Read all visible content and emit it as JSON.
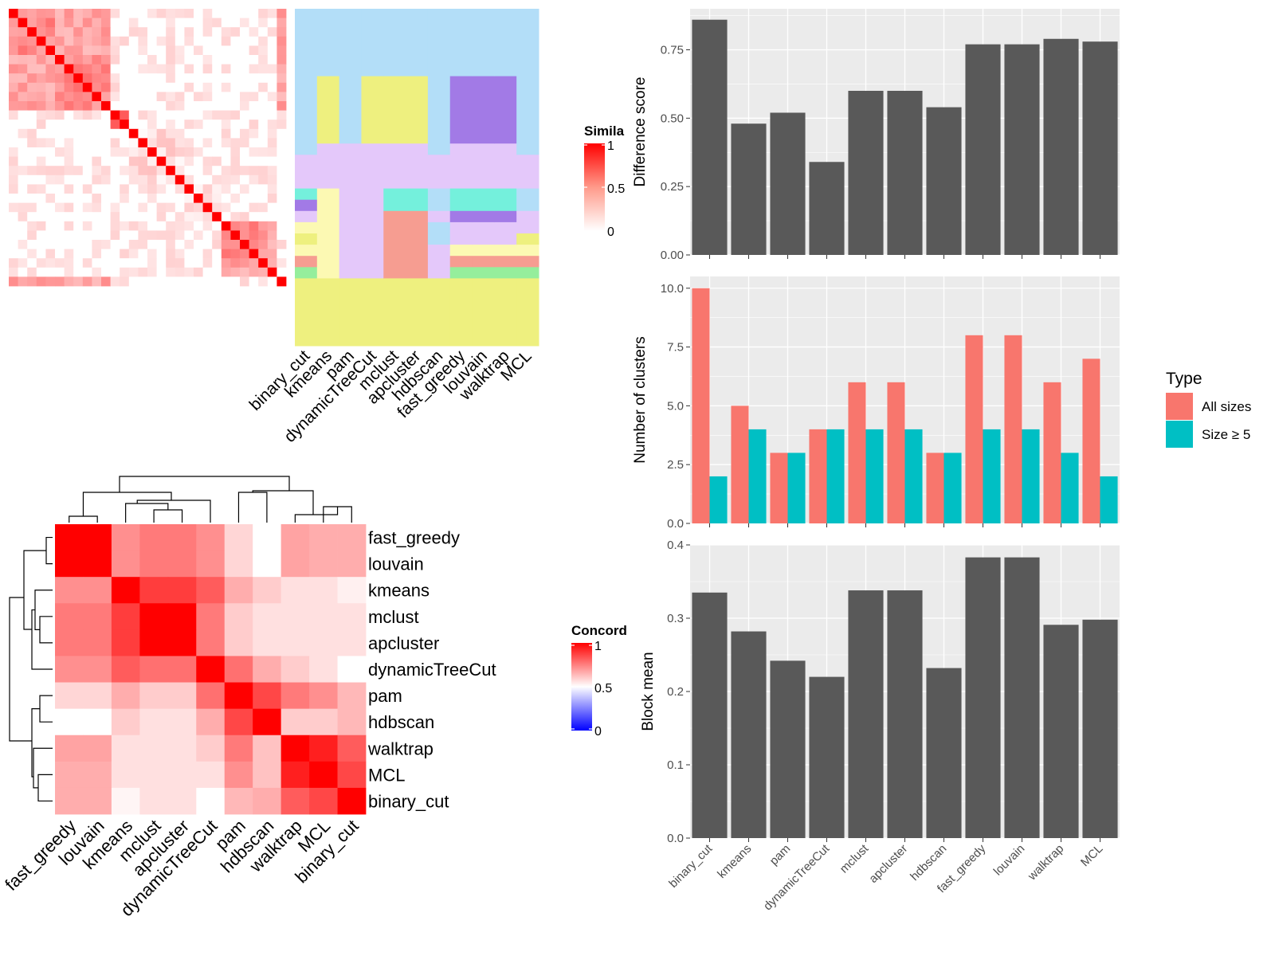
{
  "methods_x": [
    "binary_cut",
    "kmeans",
    "pam",
    "dynamicTreeCut",
    "mclust",
    "apcluster",
    "hdbscan",
    "fast_greedy",
    "louvain",
    "walktrap",
    "MCL"
  ],
  "similarity_legend": {
    "title": "Simila",
    "ticks": [
      "1",
      "0.5",
      "0"
    ]
  },
  "concordance_legend": {
    "title": "Concord",
    "ticks": [
      "1",
      "0.5",
      "0"
    ]
  },
  "colors": {
    "panel_bg": "#ebebeb",
    "grid": "#ffffff",
    "bar_dark": "#595959",
    "all_sizes": "#f8766d",
    "size_ge5": "#00bfc4",
    "sim_high": "#ff0000",
    "cluster_lightblue": "#b3def8",
    "cluster_lightyellow": "#eef07f",
    "cluster_lavender": "#e4c8fa",
    "cluster_purple": "#a27ae6",
    "cluster_cyan": "#74f0dc",
    "cluster_salmon": "#f69d91",
    "cluster_cream": "#fcf9b3",
    "cluster_green": "#95ee9c"
  },
  "chart_data": [
    {
      "type": "heatmap",
      "name": "similarity_matrix",
      "n": 30,
      "blocks": [
        [
          0,
          5,
          0.35
        ],
        [
          5,
          11,
          0.35
        ],
        [
          11,
          13,
          0.45
        ],
        [
          13,
          19,
          0.0
        ],
        [
          19,
          23,
          0.0
        ],
        [
          23,
          28,
          0.3
        ],
        [
          28,
          29,
          0.3
        ]
      ],
      "annotation_columns": [
        "binary_cut",
        "kmeans",
        "pam",
        "dynamicTreeCut",
        "mclust",
        "apcluster",
        "hdbscan",
        "fast_greedy",
        "louvain",
        "walktrap",
        "MCL"
      ]
    },
    {
      "type": "heatmap",
      "name": "concordance",
      "rows": [
        "fast_greedy",
        "louvain",
        "kmeans",
        "mclust",
        "apcluster",
        "dynamicTreeCut",
        "pam",
        "hdbscan",
        "walktrap",
        "MCL",
        "binary_cut"
      ],
      "columns": [
        "fast_greedy",
        "louvain",
        "kmeans",
        "mclust",
        "apcluster",
        "dynamicTreeCut",
        "pam",
        "hdbscan",
        "walktrap",
        "MCL",
        "binary_cut"
      ],
      "values": [
        [
          1.0,
          1.0,
          0.72,
          0.76,
          0.76,
          0.72,
          0.58,
          0.5,
          0.68,
          0.66,
          0.66
        ],
        [
          1.0,
          1.0,
          0.72,
          0.76,
          0.76,
          0.72,
          0.58,
          0.5,
          0.68,
          0.66,
          0.66
        ],
        [
          0.72,
          0.72,
          1.0,
          0.88,
          0.88,
          0.82,
          0.66,
          0.6,
          0.56,
          0.56,
          0.53
        ],
        [
          0.76,
          0.76,
          0.88,
          1.0,
          1.0,
          0.76,
          0.6,
          0.56,
          0.56,
          0.56,
          0.56
        ],
        [
          0.76,
          0.76,
          0.88,
          1.0,
          1.0,
          0.76,
          0.6,
          0.56,
          0.56,
          0.56,
          0.56
        ],
        [
          0.72,
          0.72,
          0.82,
          0.78,
          0.78,
          1.0,
          0.78,
          0.66,
          0.6,
          0.56,
          0.5
        ],
        [
          0.58,
          0.58,
          0.66,
          0.6,
          0.6,
          0.78,
          1.0,
          0.86,
          0.76,
          0.72,
          0.64
        ],
        [
          0.5,
          0.5,
          0.6,
          0.56,
          0.56,
          0.66,
          0.86,
          1.0,
          0.6,
          0.6,
          0.64
        ],
        [
          0.68,
          0.68,
          0.56,
          0.56,
          0.56,
          0.6,
          0.76,
          0.62,
          1.0,
          0.94,
          0.82
        ],
        [
          0.66,
          0.66,
          0.56,
          0.56,
          0.56,
          0.56,
          0.72,
          0.62,
          0.94,
          1.0,
          0.86
        ],
        [
          0.66,
          0.66,
          0.52,
          0.56,
          0.56,
          0.5,
          0.64,
          0.66,
          0.82,
          0.86,
          1.0
        ]
      ]
    },
    {
      "type": "bar",
      "name": "difference_score",
      "categories": [
        "binary_cut",
        "kmeans",
        "pam",
        "dynamicTreeCut",
        "mclust",
        "apcluster",
        "hdbscan",
        "fast_greedy",
        "louvain",
        "walktrap",
        "MCL"
      ],
      "values": [
        0.86,
        0.48,
        0.52,
        0.34,
        0.6,
        0.6,
        0.54,
        0.77,
        0.77,
        0.79,
        0.78
      ],
      "ylabel": "Difference score",
      "ylim": [
        0,
        0.9
      ],
      "yticks": [
        0.0,
        0.25,
        0.5,
        0.75
      ],
      "ytick_labels": [
        "0.00",
        "0.25",
        "0.50",
        "0.75"
      ]
    },
    {
      "type": "bar",
      "name": "number_of_clusters",
      "categories": [
        "binary_cut",
        "kmeans",
        "pam",
        "dynamicTreeCut",
        "mclust",
        "apcluster",
        "hdbscan",
        "fast_greedy",
        "louvain",
        "walktrap",
        "MCL"
      ],
      "series": [
        {
          "name": "All sizes",
          "values": [
            10,
            5,
            3,
            4,
            6,
            6,
            3,
            8,
            8,
            6,
            7
          ]
        },
        {
          "name": "Size ≥ 5",
          "values": [
            2,
            4,
            3,
            4,
            4,
            4,
            3,
            4,
            4,
            3,
            2
          ]
        }
      ],
      "ylabel": "Number of clusters",
      "ylim": [
        0,
        10.5
      ],
      "yticks": [
        0,
        2.5,
        5,
        7.5,
        10
      ],
      "ytick_labels": [
        "0.0",
        "2.5",
        "5.0",
        "7.5",
        "10.0"
      ],
      "legend_title": "Type",
      "legend_position": "right"
    },
    {
      "type": "bar",
      "name": "block_mean",
      "categories": [
        "binary_cut",
        "kmeans",
        "pam",
        "dynamicTreeCut",
        "mclust",
        "apcluster",
        "hdbscan",
        "fast_greedy",
        "louvain",
        "walktrap",
        "MCL"
      ],
      "values": [
        0.335,
        0.282,
        0.242,
        0.22,
        0.338,
        0.338,
        0.232,
        0.383,
        0.383,
        0.291,
        0.298
      ],
      "ylabel": "Block mean",
      "ylim": [
        0,
        0.4
      ],
      "yticks": [
        0,
        0.1,
        0.2,
        0.3,
        0.4
      ],
      "ytick_labels": [
        "0.0",
        "0.1",
        "0.2",
        "0.3",
        "0.4"
      ]
    }
  ]
}
